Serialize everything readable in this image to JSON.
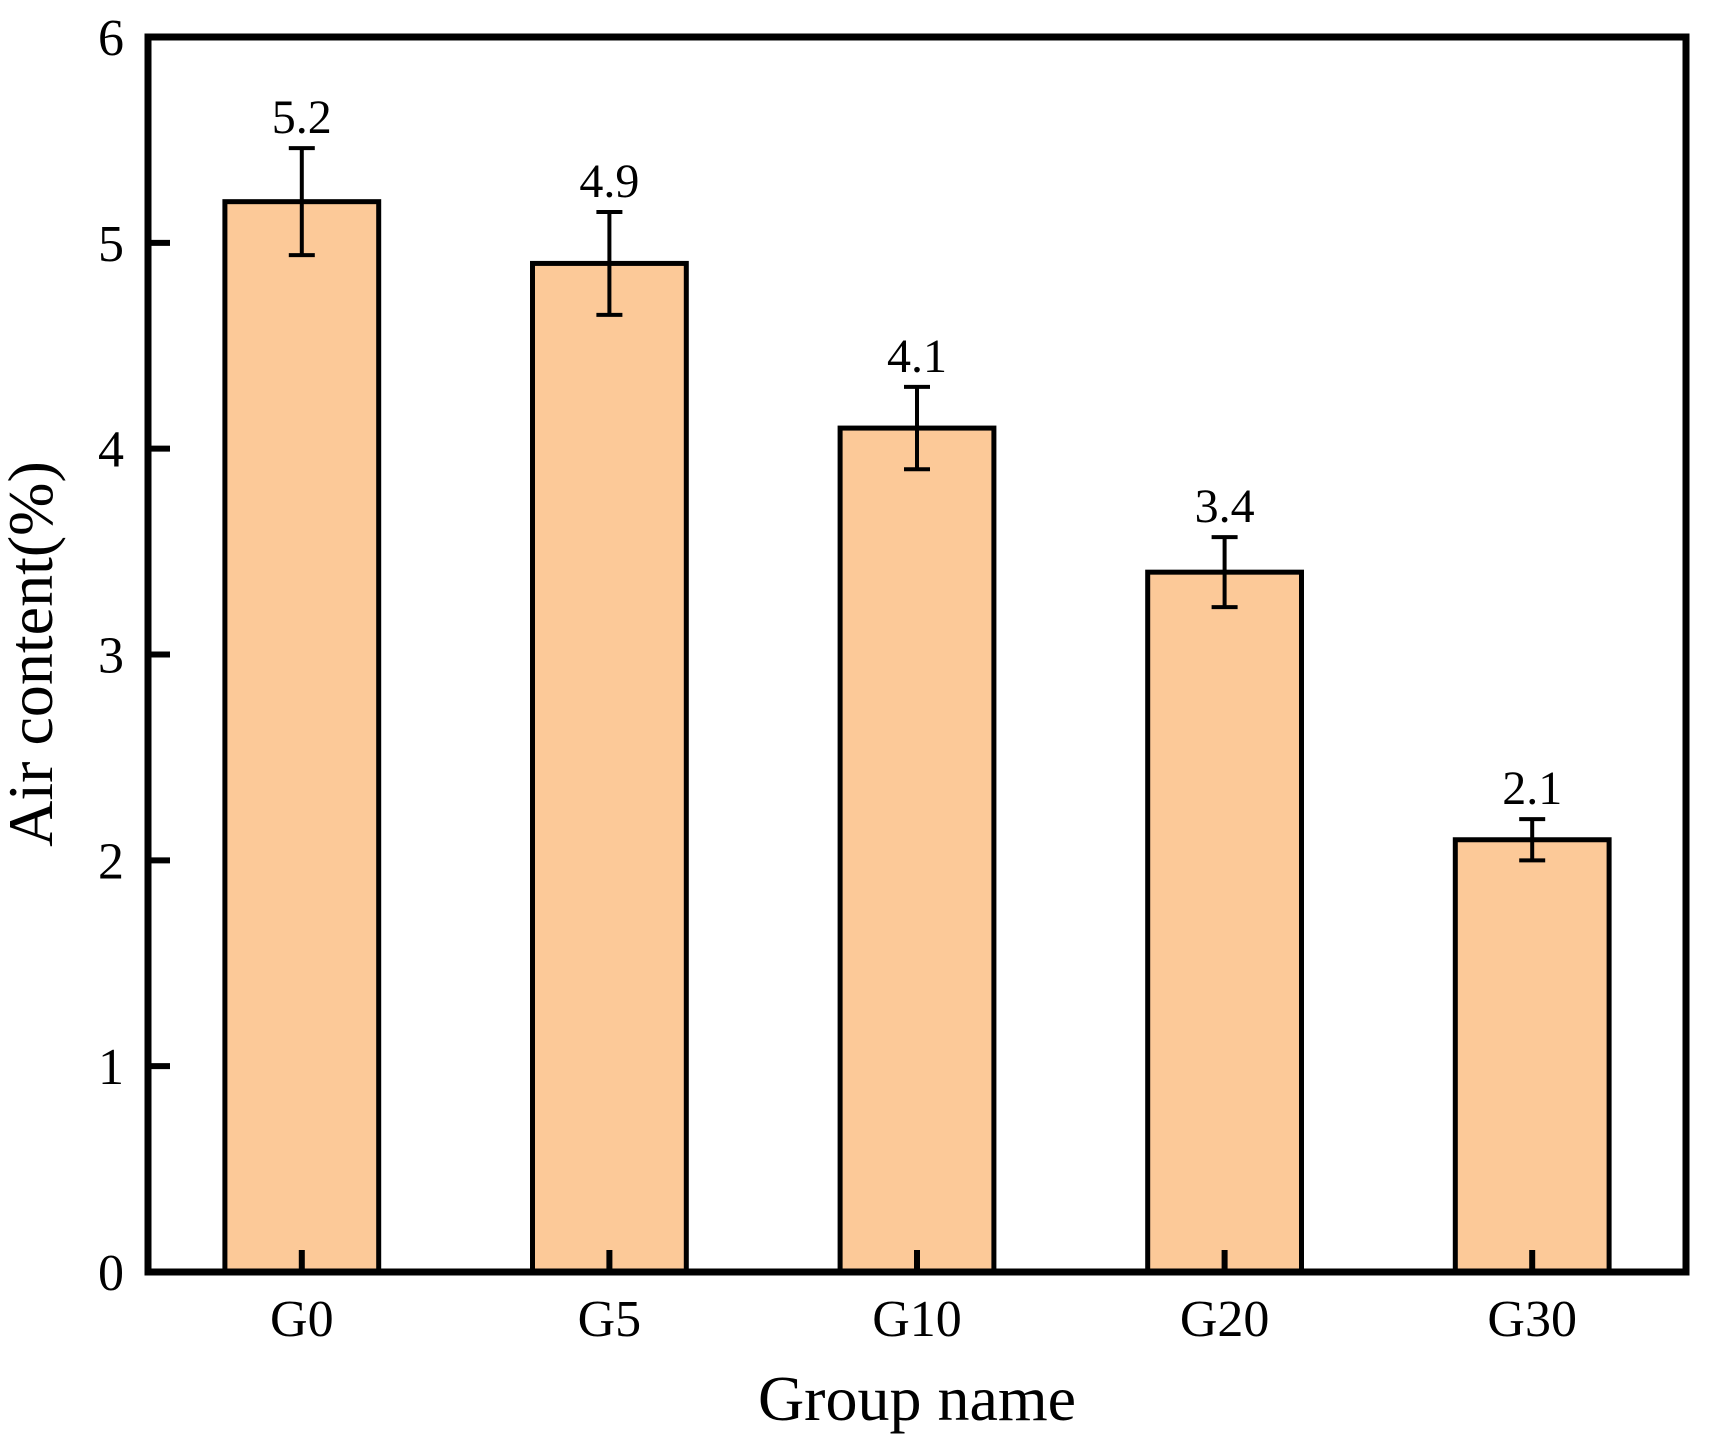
{
  "chart_data": {
    "type": "bar",
    "title": "",
    "categories": [
      "G0",
      "G5",
      "G10",
      "G20",
      "G30"
    ],
    "values": [
      5.2,
      4.9,
      4.1,
      3.4,
      2.1
    ],
    "errors": [
      0.26,
      0.25,
      0.2,
      0.17,
      0.1
    ],
    "value_labels": [
      "5.2",
      "4.9",
      "4.1",
      "3.4",
      "2.1"
    ],
    "xlabel": "Group name",
    "ylabel": "Air content(%)",
    "ylim": [
      0,
      6
    ],
    "yticks": [
      0,
      1,
      2,
      3,
      4,
      5,
      6
    ],
    "grid": false,
    "legend_position": "none",
    "colors": {
      "bar_fill": "#FCC998",
      "bar_edge": "#000000",
      "axis": "#000000",
      "text": "#000000",
      "background": "#FFFFFF"
    }
  }
}
